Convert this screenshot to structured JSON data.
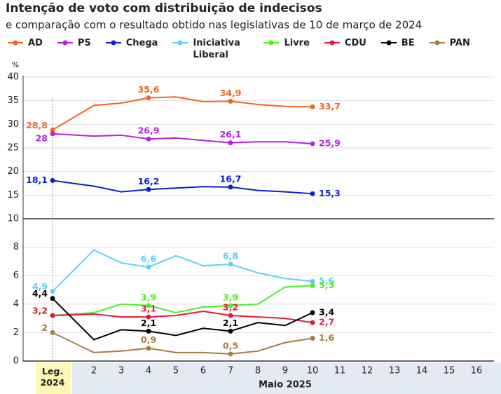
{
  "chart_data": {
    "type": "line",
    "title": "Intenção de voto com distribuição de indecisos",
    "subtitle": "e comparação com o resultado obtido nas legislativas de 10 de março de 2024",
    "y_label": "%",
    "x_group_label": "Maio 2025",
    "categories": [
      "Leg. 2024",
      "2",
      "3",
      "4",
      "5",
      "6",
      "7",
      "8",
      "9",
      "10",
      "11",
      "12",
      "13",
      "14",
      "15",
      "16"
    ],
    "ylim": [
      10,
      40
    ],
    "yticks": [
      10,
      15,
      20,
      25,
      30,
      35,
      40
    ],
    "y2lim": [
      0,
      10
    ],
    "y2ticks": [
      0,
      2,
      4,
      6,
      8
    ],
    "grid": true,
    "series": [
      {
        "name": "AD",
        "color": "#f26522",
        "values": [
          28.8,
          34.0,
          34.5,
          35.6,
          35.8,
          34.8,
          34.9,
          34.2,
          33.8,
          33.7,
          null,
          null,
          null,
          null,
          null,
          null
        ],
        "value_labels": [
          "28,8",
          null,
          null,
          "35,6",
          null,
          null,
          "34,9",
          null,
          null,
          "33,7",
          null,
          null,
          null,
          null,
          null,
          null
        ]
      },
      {
        "name": "PS",
        "color": "#b620e0",
        "values": [
          28,
          27.5,
          27.7,
          26.9,
          27.1,
          26.6,
          26.1,
          26.3,
          26.3,
          25.9,
          null,
          null,
          null,
          null,
          null,
          null
        ],
        "value_labels": [
          "28",
          null,
          null,
          "26,9",
          null,
          null,
          "26,1",
          null,
          null,
          "25,9",
          null,
          null,
          null,
          null,
          null,
          null
        ]
      },
      {
        "name": "Chega",
        "color": "#0a1fd0",
        "values": [
          18.1,
          16.9,
          15.7,
          16.2,
          16.5,
          16.8,
          16.7,
          16.0,
          15.7,
          15.3,
          null,
          null,
          null,
          null,
          null,
          null
        ],
        "value_labels": [
          "18,1",
          null,
          null,
          "16,2",
          null,
          null,
          "16,7",
          null,
          null,
          "15,3",
          null,
          null,
          null,
          null,
          null,
          null
        ]
      },
      {
        "name": "Iniciativa Liberal",
        "color": "#5ad2f4",
        "axis": "y2",
        "values": [
          4.9,
          7.8,
          6.9,
          6.6,
          7.4,
          6.7,
          6.8,
          6.2,
          5.8,
          5.6,
          null,
          null,
          null,
          null,
          null,
          null
        ],
        "value_labels": [
          "4,9",
          null,
          null,
          "6,6",
          null,
          null,
          "6,8",
          null,
          null,
          "5,6",
          null,
          null,
          null,
          null,
          null,
          null
        ]
      },
      {
        "name": "Livre",
        "color": "#4cf01e",
        "axis": "y2",
        "values": [
          3.2,
          3.4,
          4.0,
          3.9,
          3.4,
          3.8,
          3.9,
          4.0,
          5.2,
          5.3,
          null,
          null,
          null,
          null,
          null,
          null
        ],
        "value_labels": [
          "3,2",
          null,
          null,
          "3,9",
          null,
          null,
          "3,9",
          null,
          null,
          "5,3",
          null,
          null,
          null,
          null,
          null,
          null
        ]
      },
      {
        "name": "CDU",
        "color": "#e8173c",
        "axis": "y2",
        "values": [
          3.2,
          3.3,
          3.1,
          3.1,
          3.2,
          3.5,
          3.2,
          3.1,
          3.0,
          2.7,
          null,
          null,
          null,
          null,
          null,
          null
        ],
        "value_labels": [
          "3,2",
          null,
          null,
          "3,1",
          null,
          null,
          "3,2",
          null,
          null,
          "2,7",
          null,
          null,
          null,
          null,
          null,
          null
        ]
      },
      {
        "name": "BE",
        "color": "#000000",
        "axis": "y2",
        "values": [
          4.4,
          1.5,
          2.2,
          2.1,
          1.8,
          2.3,
          2.1,
          2.7,
          2.5,
          3.4,
          null,
          null,
          null,
          null,
          null,
          null
        ],
        "value_labels": [
          "4,4",
          null,
          null,
          "2,1",
          null,
          null,
          "2,1",
          null,
          null,
          "3,4",
          null,
          null,
          null,
          null,
          null,
          null
        ]
      },
      {
        "name": "PAN",
        "color": "#a67c45",
        "axis": "y2",
        "values": [
          2,
          0.6,
          0.7,
          0.9,
          0.6,
          0.6,
          0.5,
          0.7,
          1.3,
          1.6,
          null,
          null,
          null,
          null,
          null,
          null
        ],
        "value_labels": [
          "2",
          null,
          null,
          "0,9",
          null,
          null,
          "0,5",
          null,
          null,
          "1,6",
          null,
          null,
          null,
          null,
          null,
          null
        ]
      }
    ]
  }
}
